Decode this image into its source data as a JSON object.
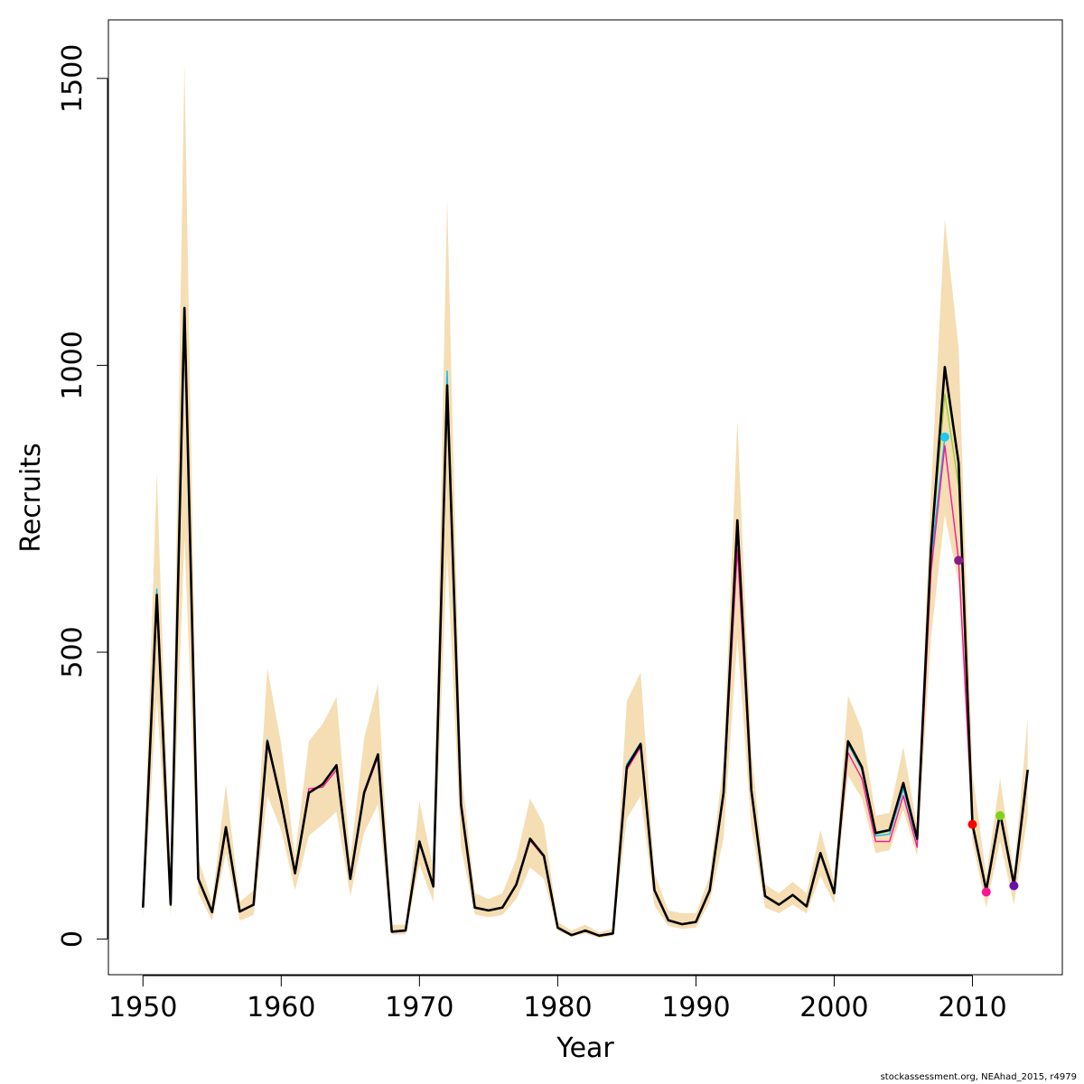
{
  "footer_text": "stockassessment.org, NEAhad_2015, r4979",
  "chart_data": {
    "type": "line",
    "xlabel": "Year",
    "ylabel": "Recruits",
    "xlim": [
      1947.5,
      2016.5
    ],
    "ylim": [
      -62,
      1602
    ],
    "x_ticks": [
      1950,
      1960,
      1970,
      1980,
      1990,
      2000,
      2010
    ],
    "y_ticks": [
      0,
      500,
      1000,
      1500
    ],
    "grid": false,
    "legend": "none",
    "band": {
      "color": "#f5deb3",
      "years": [
        1950,
        1951,
        1952,
        1953,
        1954,
        1955,
        1956,
        1957,
        1958,
        1959,
        1960,
        1961,
        1962,
        1963,
        1964,
        1965,
        1966,
        1967,
        1968,
        1969,
        1970,
        1971,
        1972,
        1973,
        1974,
        1975,
        1976,
        1977,
        1978,
        1979,
        1980,
        1981,
        1982,
        1983,
        1984,
        1985,
        1986,
        1987,
        1988,
        1989,
        1990,
        1991,
        1992,
        1993,
        1994,
        1995,
        1996,
        1997,
        1998,
        1999,
        2000,
        2001,
        2002,
        2003,
        2004,
        2005,
        2006,
        2007,
        2008,
        2009,
        2010,
        2011,
        2012,
        2013,
        2014
      ],
      "upper": [
        80,
        815,
        85,
        1525,
        140,
        65,
        270,
        65,
        85,
        472,
        340,
        145,
        345,
        375,
        422,
        140,
        350,
        445,
        25,
        25,
        240,
        125,
        1290,
        300,
        80,
        70,
        80,
        140,
        245,
        200,
        30,
        15,
        25,
        12,
        18,
        415,
        465,
        115,
        50,
        45,
        45,
        110,
        310,
        905,
        330,
        95,
        80,
        100,
        80,
        190,
        100,
        425,
        365,
        215,
        220,
        335,
        195,
        780,
        1255,
        1030,
        290,
        110,
        280,
        115,
        385
      ],
      "lower": [
        40,
        420,
        40,
        700,
        80,
        32,
        150,
        32,
        42,
        250,
        190,
        85,
        180,
        200,
        222,
        75,
        185,
        235,
        8,
        8,
        130,
        65,
        670,
        160,
        43,
        38,
        42,
        70,
        125,
        105,
        15,
        4,
        10,
        2,
        6,
        210,
        250,
        58,
        23,
        18,
        20,
        65,
        175,
        525,
        195,
        55,
        45,
        60,
        45,
        110,
        62,
        285,
        245,
        150,
        155,
        225,
        145,
        525,
        740,
        620,
        170,
        55,
        170,
        60,
        215
      ]
    },
    "series": [
      {
        "color": "#000000",
        "points": [
          [
            1950,
            55
          ],
          [
            1951,
            600
          ],
          [
            1952,
            60
          ],
          [
            1953,
            1100
          ],
          [
            1954,
            105
          ],
          [
            1955,
            47
          ],
          [
            1956,
            195
          ],
          [
            1957,
            48
          ],
          [
            1958,
            60
          ],
          [
            1959,
            345
          ],
          [
            1960,
            240
          ],
          [
            1961,
            115
          ],
          [
            1962,
            255
          ],
          [
            1963,
            270
          ],
          [
            1964,
            303
          ],
          [
            1965,
            105
          ],
          [
            1966,
            255
          ],
          [
            1967,
            322
          ],
          [
            1968,
            13
          ],
          [
            1969,
            15
          ],
          [
            1970,
            170
          ],
          [
            1971,
            92
          ],
          [
            1972,
            965
          ],
          [
            1973,
            235
          ],
          [
            1974,
            55
          ],
          [
            1975,
            50
          ],
          [
            1976,
            55
          ],
          [
            1977,
            95
          ],
          [
            1978,
            175
          ],
          [
            1979,
            145
          ],
          [
            1980,
            20
          ],
          [
            1981,
            7
          ],
          [
            1982,
            15
          ],
          [
            1983,
            6
          ],
          [
            1984,
            10
          ],
          [
            1985,
            300
          ],
          [
            1986,
            340
          ],
          [
            1987,
            85
          ],
          [
            1988,
            33
          ],
          [
            1989,
            26
          ],
          [
            1990,
            30
          ],
          [
            1991,
            85
          ],
          [
            1992,
            255
          ],
          [
            1993,
            730
          ],
          [
            1994,
            260
          ],
          [
            1995,
            75
          ],
          [
            1996,
            60
          ],
          [
            1997,
            77
          ],
          [
            1998,
            57
          ],
          [
            1999,
            150
          ],
          [
            2000,
            80
          ],
          [
            2001,
            345
          ],
          [
            2002,
            300
          ],
          [
            2003,
            185
          ],
          [
            2004,
            190
          ],
          [
            2005,
            272
          ],
          [
            2006,
            175
          ],
          [
            2007,
            680
          ],
          [
            2008,
            997
          ],
          [
            2009,
            830
          ],
          [
            2010,
            200
          ],
          [
            2011,
            85
          ],
          [
            2012,
            220
          ],
          [
            2013,
            95
          ],
          [
            2014,
            295
          ]
        ]
      },
      {
        "color": "#ff1493",
        "points": [
          [
            1950,
            55
          ],
          [
            1951,
            595
          ],
          [
            1952,
            60
          ],
          [
            1953,
            1080
          ],
          [
            1954,
            105
          ],
          [
            1955,
            47
          ],
          [
            1956,
            190
          ],
          [
            1957,
            48
          ],
          [
            1958,
            60
          ],
          [
            1959,
            340
          ],
          [
            1960,
            238
          ],
          [
            1961,
            113
          ],
          [
            1962,
            262
          ],
          [
            1963,
            265
          ],
          [
            1964,
            295
          ],
          [
            1965,
            105
          ],
          [
            1966,
            252
          ],
          [
            1967,
            318
          ],
          [
            1968,
            13
          ],
          [
            1969,
            15
          ],
          [
            1970,
            168
          ],
          [
            1971,
            90
          ],
          [
            1972,
            950
          ],
          [
            1973,
            232
          ],
          [
            1974,
            55
          ],
          [
            1975,
            50
          ],
          [
            1976,
            55
          ],
          [
            1977,
            95
          ],
          [
            1978,
            172
          ],
          [
            1979,
            143
          ],
          [
            1980,
            20
          ],
          [
            1981,
            7
          ],
          [
            1982,
            15
          ],
          [
            1983,
            6
          ],
          [
            1984,
            10
          ],
          [
            1985,
            295
          ],
          [
            1986,
            335
          ],
          [
            1987,
            85
          ],
          [
            1988,
            33
          ],
          [
            1989,
            26
          ],
          [
            1990,
            30
          ],
          [
            1991,
            85
          ],
          [
            1992,
            250
          ],
          [
            1993,
            680
          ],
          [
            1994,
            255
          ],
          [
            1995,
            75
          ],
          [
            1996,
            60
          ],
          [
            1997,
            77
          ],
          [
            1998,
            57
          ],
          [
            1999,
            148
          ],
          [
            2000,
            80
          ],
          [
            2001,
            325
          ],
          [
            2002,
            280
          ],
          [
            2003,
            170
          ],
          [
            2004,
            170
          ],
          [
            2005,
            250
          ],
          [
            2006,
            160
          ],
          [
            2007,
            640
          ],
          [
            2008,
            860
          ],
          [
            2009,
            660
          ],
          [
            2010,
            200
          ],
          [
            2011,
            82
          ]
        ]
      },
      {
        "color": "#00bfff",
        "points": [
          [
            1950,
            55
          ],
          [
            1951,
            610
          ],
          [
            1952,
            60
          ],
          [
            1953,
            1090
          ],
          [
            1954,
            105
          ],
          [
            1955,
            47
          ],
          [
            1956,
            195
          ],
          [
            1957,
            48
          ],
          [
            1958,
            60
          ],
          [
            1959,
            348
          ],
          [
            1960,
            240
          ],
          [
            1961,
            115
          ],
          [
            1962,
            255
          ],
          [
            1963,
            270
          ],
          [
            1964,
            300
          ],
          [
            1965,
            105
          ],
          [
            1966,
            255
          ],
          [
            1967,
            322
          ],
          [
            1968,
            13
          ],
          [
            1969,
            15
          ],
          [
            1970,
            172
          ],
          [
            1971,
            92
          ],
          [
            1972,
            990
          ],
          [
            1973,
            235
          ],
          [
            1974,
            55
          ],
          [
            1975,
            50
          ],
          [
            1976,
            55
          ],
          [
            1977,
            95
          ],
          [
            1978,
            175
          ],
          [
            1979,
            145
          ],
          [
            1980,
            20
          ],
          [
            1981,
            7
          ],
          [
            1982,
            15
          ],
          [
            1983,
            6
          ],
          [
            1984,
            10
          ],
          [
            1985,
            305
          ],
          [
            1986,
            342
          ],
          [
            1987,
            85
          ],
          [
            1988,
            33
          ],
          [
            1989,
            26
          ],
          [
            1990,
            30
          ],
          [
            1991,
            85
          ],
          [
            1992,
            255
          ],
          [
            1993,
            710
          ],
          [
            1994,
            258
          ],
          [
            1995,
            75
          ],
          [
            1996,
            60
          ],
          [
            1997,
            77
          ],
          [
            1998,
            57
          ],
          [
            1999,
            150
          ],
          [
            2000,
            80
          ],
          [
            2001,
            340
          ],
          [
            2002,
            295
          ],
          [
            2003,
            180
          ],
          [
            2004,
            183
          ],
          [
            2005,
            262
          ],
          [
            2006,
            170
          ],
          [
            2007,
            660
          ],
          [
            2008,
            875
          ]
        ]
      },
      {
        "color": "#9acd32",
        "points": [
          [
            1950,
            55
          ],
          [
            1951,
            600
          ],
          [
            1952,
            60
          ],
          [
            1953,
            1095
          ],
          [
            1954,
            105
          ],
          [
            1955,
            47
          ],
          [
            1956,
            195
          ],
          [
            1957,
            48
          ],
          [
            1958,
            60
          ],
          [
            1959,
            345
          ],
          [
            1960,
            240
          ],
          [
            1961,
            115
          ],
          [
            1962,
            255
          ],
          [
            1963,
            270
          ],
          [
            1964,
            302
          ],
          [
            1965,
            105
          ],
          [
            1966,
            255
          ],
          [
            1967,
            322
          ],
          [
            1968,
            13
          ],
          [
            1969,
            15
          ],
          [
            1970,
            170
          ],
          [
            1971,
            92
          ],
          [
            1972,
            970
          ],
          [
            1973,
            235
          ],
          [
            1974,
            55
          ],
          [
            1975,
            50
          ],
          [
            1976,
            55
          ],
          [
            1977,
            95
          ],
          [
            1978,
            175
          ],
          [
            1979,
            145
          ],
          [
            1980,
            20
          ],
          [
            1981,
            7
          ],
          [
            1982,
            15
          ],
          [
            1983,
            6
          ],
          [
            1984,
            10
          ],
          [
            1985,
            300
          ],
          [
            1986,
            340
          ],
          [
            1987,
            85
          ],
          [
            1988,
            33
          ],
          [
            1989,
            26
          ],
          [
            1990,
            30
          ],
          [
            1991,
            85
          ],
          [
            1992,
            255
          ],
          [
            1993,
            720
          ],
          [
            1994,
            260
          ],
          [
            1995,
            75
          ],
          [
            1996,
            60
          ],
          [
            1997,
            77
          ],
          [
            1998,
            57
          ],
          [
            1999,
            150
          ],
          [
            2000,
            80
          ],
          [
            2001,
            345
          ],
          [
            2002,
            298
          ],
          [
            2003,
            183
          ],
          [
            2004,
            188
          ],
          [
            2005,
            268
          ],
          [
            2006,
            173
          ],
          [
            2007,
            675
          ],
          [
            2008,
            950
          ],
          [
            2009,
            790
          ],
          [
            2010,
            205
          ],
          [
            2011,
            88
          ],
          [
            2012,
            215
          ]
        ]
      }
    ],
    "markers": [
      {
        "x": 2008,
        "y": 875,
        "color": "#1ec8f0"
      },
      {
        "x": 2009,
        "y": 660,
        "color": "#8b1a89"
      },
      {
        "x": 2010,
        "y": 200,
        "color": "#ff0000"
      },
      {
        "x": 2011,
        "y": 82,
        "color": "#ff1493"
      },
      {
        "x": 2012,
        "y": 215,
        "color": "#7fd11b"
      },
      {
        "x": 2013,
        "y": 93,
        "color": "#6a0dad"
      }
    ]
  }
}
